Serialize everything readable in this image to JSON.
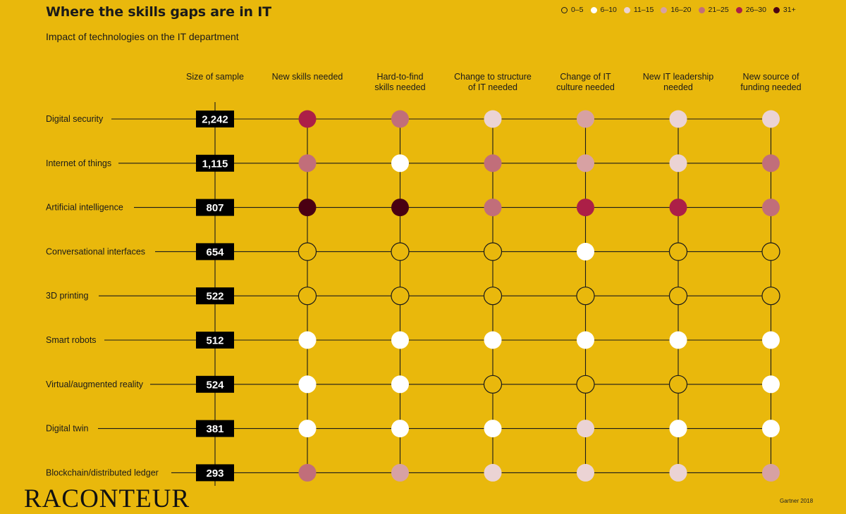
{
  "header": {
    "title": "Where the skills gaps are in IT",
    "subtitle": "Impact of technologies on the IT department"
  },
  "legend": [
    {
      "label": "0–5",
      "color": "none"
    },
    {
      "label": "6–10",
      "color": "#FFFFFF"
    },
    {
      "label": "11–15",
      "color": "#EBD3D4"
    },
    {
      "label": "16–20",
      "color": "#D7A1A3"
    },
    {
      "label": "21–25",
      "color": "#C16E7A"
    },
    {
      "label": "26–30",
      "color": "#AC1F47"
    },
    {
      "label": "31+",
      "color": "#4A0012"
    }
  ],
  "chart_data": {
    "type": "table",
    "sample_header": "Size of sample",
    "columns": [
      [
        "New skills needed"
      ],
      [
        "Hard-to-find",
        "skills needed"
      ],
      [
        "Change to structure",
        "of IT needed"
      ],
      [
        "Change of IT",
        "culture needed"
      ],
      [
        "New IT leadership",
        "needed"
      ],
      [
        "New source of",
        "funding needed"
      ]
    ],
    "rows": [
      {
        "label": "Digital security",
        "sample": "2,242",
        "levels": [
          5,
          4,
          2,
          3,
          2,
          2
        ]
      },
      {
        "label": "Internet of things",
        "sample": "1,115",
        "levels": [
          4,
          1,
          4,
          3,
          2,
          4
        ]
      },
      {
        "label": "Artificial intelligence",
        "sample": "807",
        "levels": [
          6,
          6,
          4,
          5,
          5,
          4
        ]
      },
      {
        "label": "Conversational interfaces",
        "sample": "654",
        "levels": [
          0,
          0,
          0,
          1,
          0,
          0
        ]
      },
      {
        "label": "3D printing",
        "sample": "522",
        "levels": [
          0,
          0,
          0,
          0,
          0,
          0
        ]
      },
      {
        "label": "Smart robots",
        "sample": "512",
        "levels": [
          1,
          1,
          1,
          1,
          1,
          1
        ]
      },
      {
        "label": "Virtual/augmented reality",
        "sample": "524",
        "levels": [
          1,
          1,
          0,
          0,
          0,
          1
        ]
      },
      {
        "label": "Digital twin",
        "sample": "381",
        "levels": [
          1,
          1,
          1,
          2,
          1,
          1
        ]
      },
      {
        "label": "Blockchain/distributed ledger",
        "sample": "293",
        "levels": [
          4,
          3,
          2,
          2,
          2,
          3
        ]
      }
    ]
  },
  "footer": {
    "logo": "RACONTEUR",
    "source": "Gartner 2018"
  }
}
